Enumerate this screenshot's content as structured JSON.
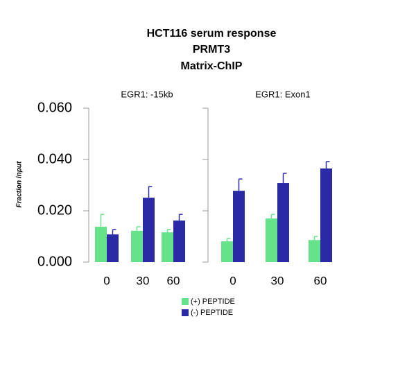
{
  "chart_data": {
    "type": "bar",
    "title": [
      "HCT116 serum response",
      "PRMT3",
      "Matrix-ChIP"
    ],
    "ylabel": "Fraction input",
    "ylim": [
      0,
      0.06
    ],
    "yticks": [
      {
        "value": 0,
        "label": "0.000"
      },
      {
        "value": 0.02,
        "label": "0.020"
      },
      {
        "value": 0.04,
        "label": "0.040"
      },
      {
        "value": 0.06,
        "label": "0.060"
      }
    ],
    "series": [
      {
        "name": "(+) PEPTIDE",
        "color": "#66e28a"
      },
      {
        "name": "(-) PEPTIDE",
        "color": "#2a2aa6"
      }
    ],
    "panels": [
      {
        "title": "EGR1: -15kb",
        "categories": [
          "0",
          "30",
          "60"
        ],
        "values": [
          [
            0.0138,
            0.0122,
            0.0116
          ],
          [
            0.0108,
            0.0251,
            0.0162
          ]
        ],
        "errors": [
          [
            0.0048,
            0.0016,
            0.0011
          ],
          [
            0.0019,
            0.0044,
            0.0024
          ]
        ]
      },
      {
        "title": "EGR1: Exon1",
        "categories": [
          "0",
          "30",
          "60"
        ],
        "values": [
          [
            0.0081,
            0.017,
            0.0086
          ],
          [
            0.0278,
            0.0308,
            0.0365
          ]
        ],
        "errors": [
          [
            0.0011,
            0.0016,
            0.0014
          ],
          [
            0.0046,
            0.0038,
            0.0027
          ]
        ]
      }
    ]
  }
}
